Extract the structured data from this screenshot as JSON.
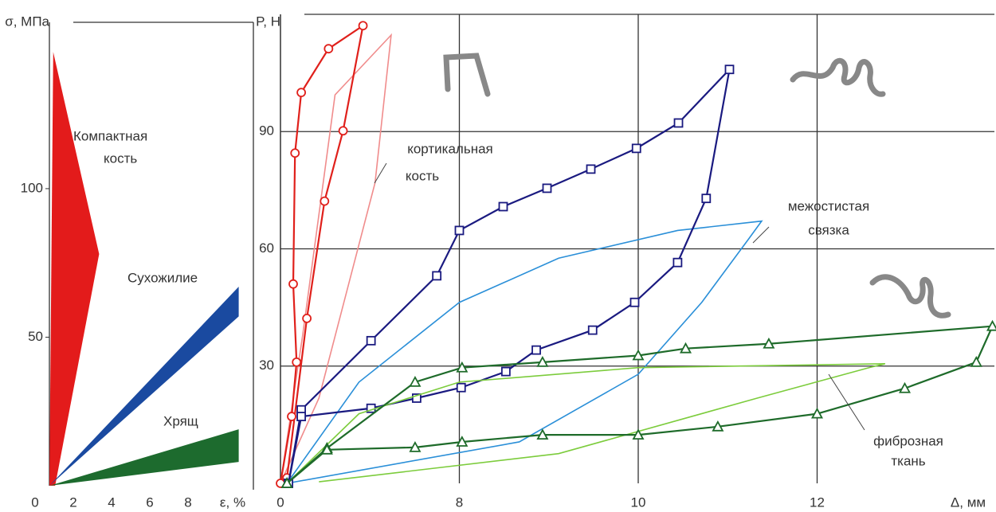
{
  "chart_data": [
    {
      "type": "area",
      "x_label": "ε, %",
      "y_label": "σ, МПа",
      "xlim": [
        0,
        10
      ],
      "ylim": [
        0,
        156
      ],
      "xticks": [
        0,
        2,
        4,
        6,
        8
      ],
      "yticks": [
        50,
        100
      ],
      "series": [
        {
          "color": "#e31b1b",
          "x": [
            0,
            0.2,
            2.6,
            0.3
          ],
          "values": [
            0,
            146,
            78,
            0
          ]
        },
        {
          "color": "#1a4aa0",
          "x": [
            0,
            9.9,
            9.9
          ],
          "values": [
            0,
            67,
            57
          ]
        },
        {
          "color": "#1d6b2e",
          "x": [
            0,
            9.9,
            9.9
          ],
          "values": [
            0,
            19,
            8
          ]
        }
      ],
      "annotations": [
        "Компактная",
        "кость",
        "Сухожилие",
        "Хрящ"
      ]
    },
    {
      "type": "line",
      "x_label": "Δ, мм",
      "y_label": "P, Н",
      "xlim": [
        0,
        14
      ],
      "ylim": [
        0,
        120
      ],
      "xticks": [
        0,
        8,
        10,
        12
      ],
      "yticks": [
        30,
        60,
        90
      ],
      "grid": true,
      "series": [
        {
          "color": "#f08c8c",
          "x": [
            0,
            1.0,
            2.44,
            4.95,
            4.23,
            1.72,
            0
          ],
          "values": [
            0,
            38.2,
            99.4,
            114.7,
            76.9,
            21.8,
            0
          ]
        },
        {
          "color": "#e0201b",
          "marker": "circle",
          "x": [
            0,
            0.5,
            0.72,
            0.57,
            0.65,
            0.93,
            2.15,
            3.69,
            2.8,
            1.97,
            1.18,
            0.29
          ],
          "values": [
            0,
            17.1,
            31,
            51,
            84.5,
            100,
            111.2,
            117.1,
            90.2,
            72.2,
            42.2,
            1.4
          ]
        },
        {
          "color": "#2a8fd8",
          "x": [
            0.29,
            3.51,
            8,
            9.11,
            10.44,
            11.38,
            11.24,
            10.71,
            10.0,
            8.67,
            0.29
          ],
          "values": [
            0,
            25.9,
            46.3,
            57.6,
            64.7,
            67.1,
            62.7,
            46.3,
            27.9,
            10.6,
            0
          ]
        },
        {
          "color": "#1a1a80",
          "marker": "square",
          "x": [
            0.36,
            0.93,
            4.05,
            6.99,
            8,
            8.49,
            8.98,
            9.47,
            9.98,
            10.45,
            11.02,
            10.76,
            10.44,
            9.96,
            9.49,
            8.86,
            8.52,
            8.02,
            6.09,
            4.05,
            0.93,
            0.36
          ],
          "values": [
            0,
            18.8,
            36.5,
            53.1,
            64.7,
            70.8,
            75.5,
            80.4,
            85.7,
            92.2,
            105.9,
            72.9,
            56.5,
            46.3,
            39.2,
            34.1,
            28.6,
            24.5,
            21.8,
            19.2,
            17.1,
            0
          ]
        },
        {
          "color": "#7ccc3c",
          "x": [
            0.29,
            3.51,
            8,
            10,
            12.76,
            12.58,
            11.33,
            9.11,
            1.72
          ],
          "values": [
            0,
            17.8,
            25.9,
            29.6,
            30.6,
            29.6,
            21.8,
            7.6,
            0.4
          ]
        },
        {
          "color": "#1e6b2a",
          "marker": "triangle",
          "x": [
            0.29,
            2.08,
            6.02,
            8.03,
            8.93,
            10.0,
            10.53,
            11.46,
            13.96,
            13.78,
            12.98,
            12.0,
            10.89,
            10.0,
            8.93,
            8.03,
            6.02,
            2.08,
            0.29
          ],
          "values": [
            0,
            9.0,
            25.9,
            29.6,
            31,
            32.7,
            34.5,
            35.7,
            40.2,
            31,
            24.3,
            17.8,
            14.5,
            12.4,
            12.4,
            10.6,
            9.2,
            8.6,
            0
          ]
        }
      ],
      "annotations": [
        "кортикальная",
        "кость",
        "межостистая",
        "связка",
        "фиброзная",
        "ткань"
      ]
    }
  ]
}
